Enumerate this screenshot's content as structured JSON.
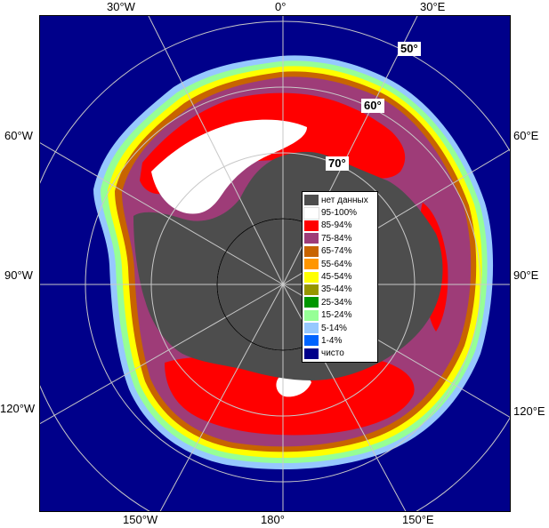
{
  "coordinates": {
    "top": [
      "30°W",
      "0°",
      "30°E"
    ],
    "left": [
      "60°W",
      "90°W",
      "120°W"
    ],
    "right": [
      "60°E",
      "90°E",
      "120°E"
    ],
    "bottom": [
      "150°W",
      "180°",
      "150°E"
    ]
  },
  "latitudes": [
    "50°",
    "60°",
    "70°"
  ],
  "legend": [
    {
      "label": "нет данных",
      "color": "#4d4d4d"
    },
    {
      "label": "95-100%",
      "color": "#ffffff"
    },
    {
      "label": "85-94%",
      "color": "#ff0000"
    },
    {
      "label": "75-84%",
      "color": "#9e3c78"
    },
    {
      "label": "65-74%",
      "color": "#c86400"
    },
    {
      "label": "55-64%",
      "color": "#ff9600"
    },
    {
      "label": "45-54%",
      "color": "#ffff00"
    },
    {
      "label": "35-44%",
      "color": "#969600"
    },
    {
      "label": "25-34%",
      "color": "#009600"
    },
    {
      "label": "15-24%",
      "color": "#96ff96"
    },
    {
      "label": "5-14%",
      "color": "#96c8ff"
    },
    {
      "label": "1-4%",
      "color": "#0064ff"
    },
    {
      "label": "чисто",
      "color": "#00008a"
    }
  ]
}
